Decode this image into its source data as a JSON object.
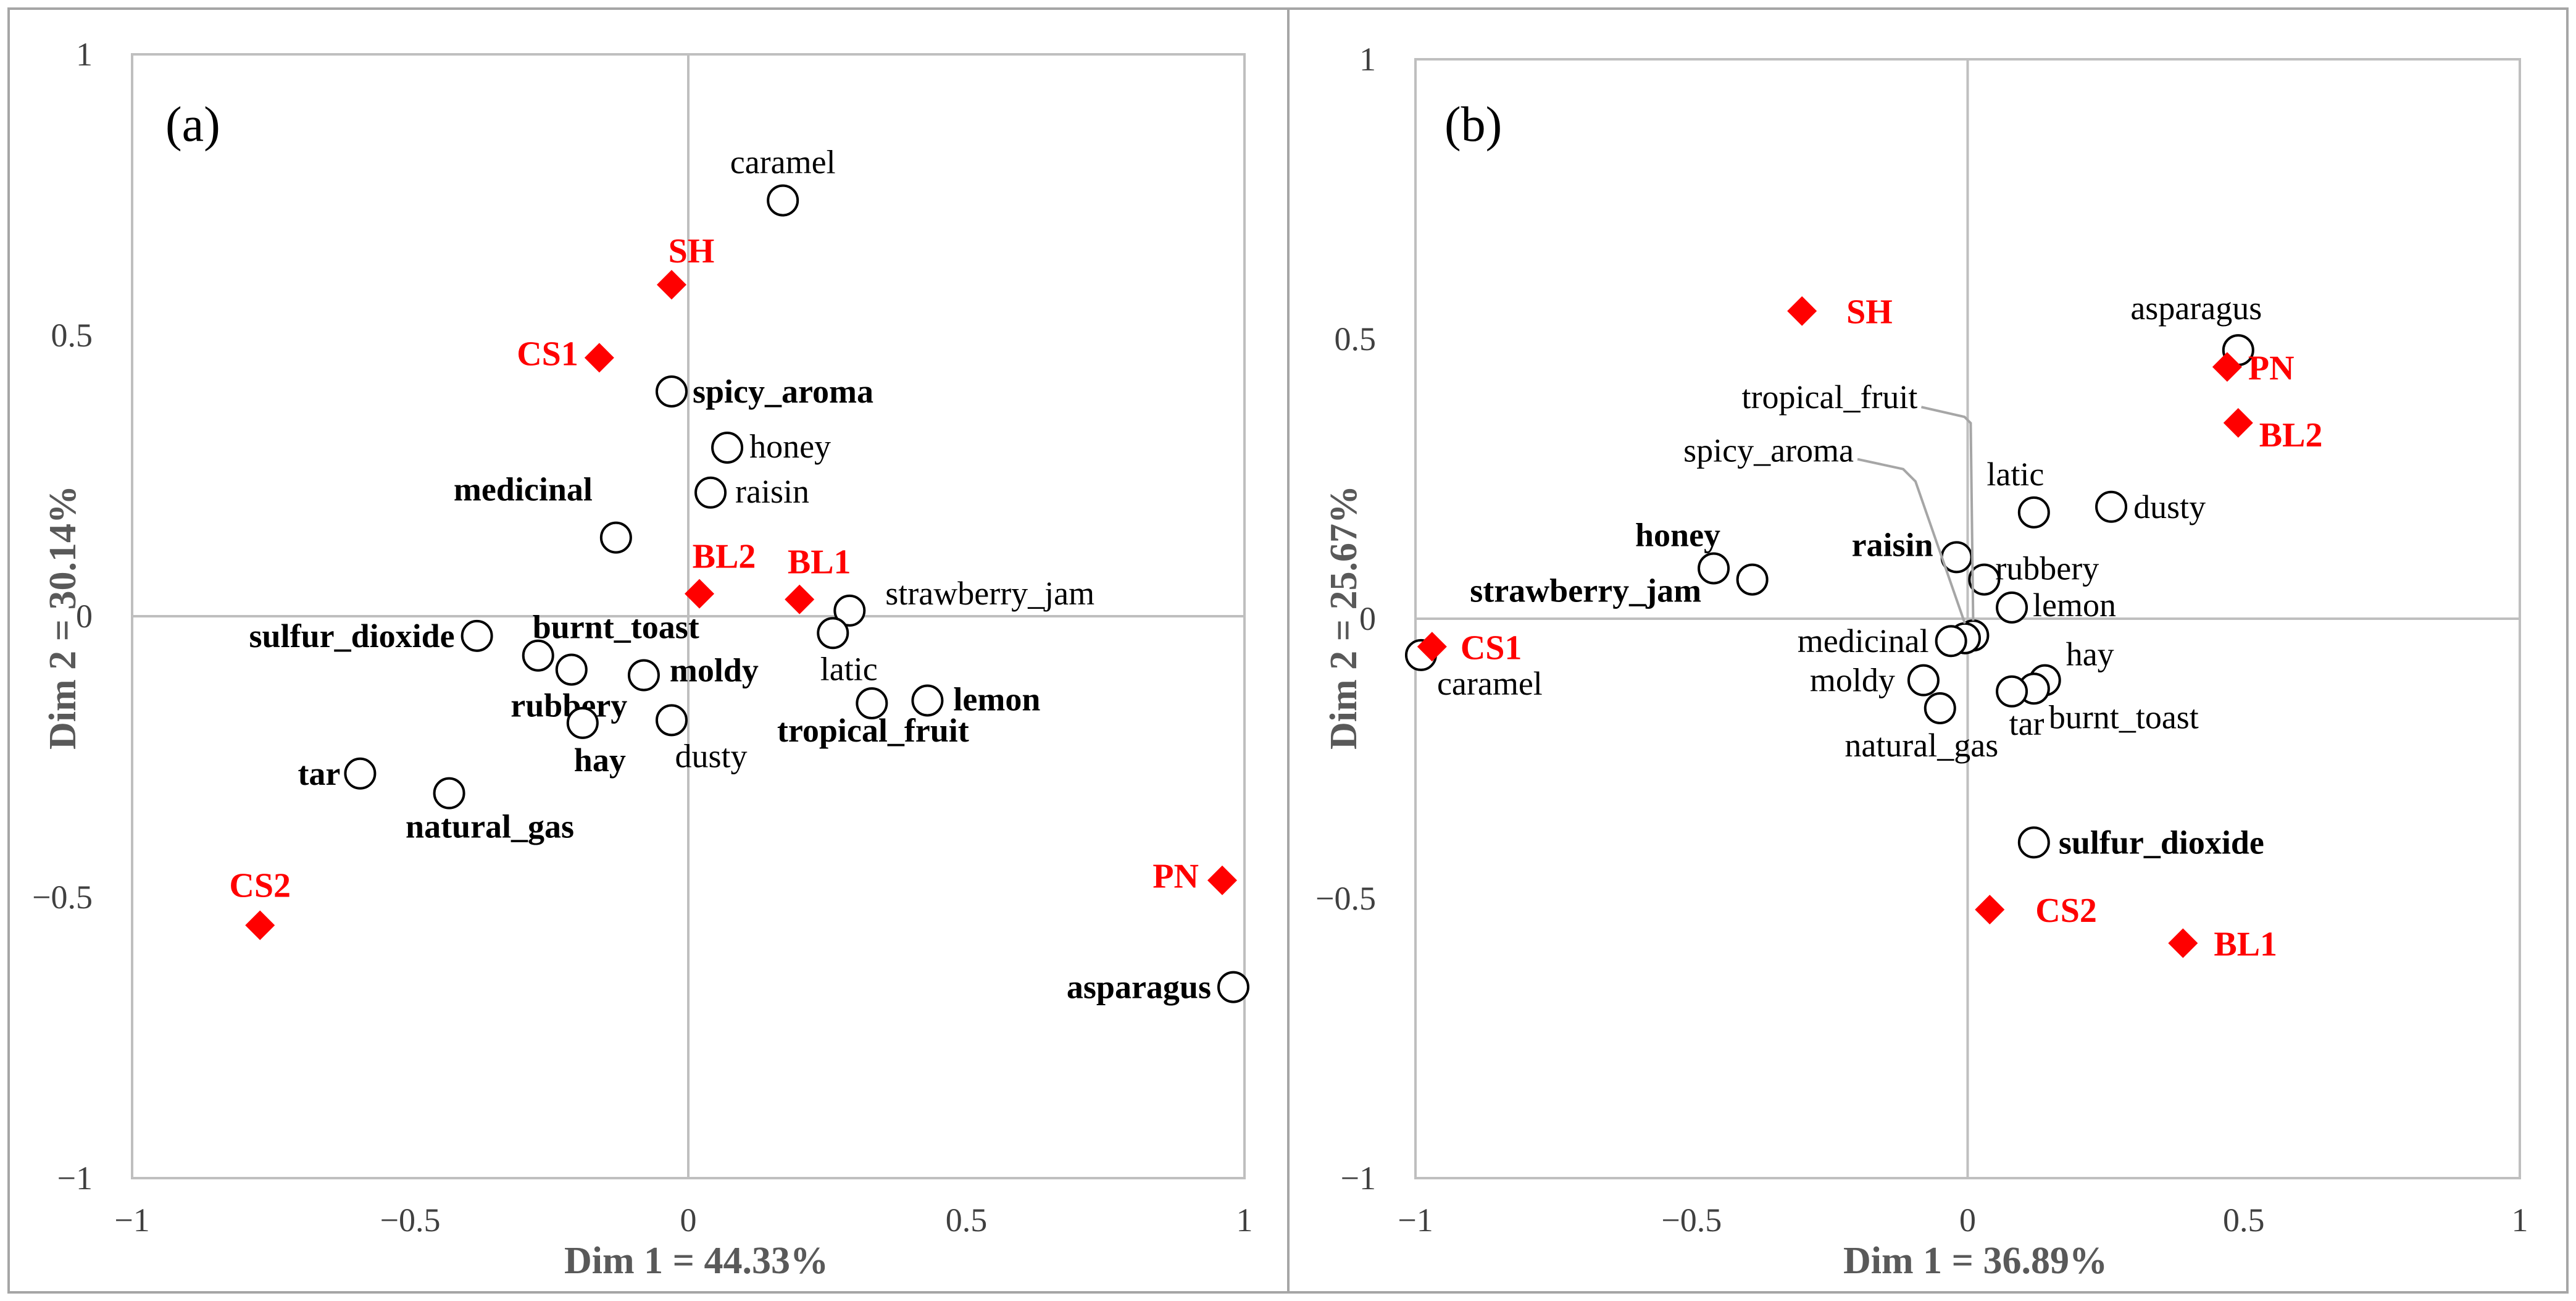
{
  "colors": {
    "sample": "#ff0000",
    "axis": "#bfbfbf",
    "frame": "#a6a6a6",
    "tick": "#404040",
    "axis_title": "#595959",
    "circle_stroke": "#000000"
  },
  "chart_data": [
    {
      "type": "scatter",
      "panel": "(a)",
      "xlabel": "Dim 1 = 44.33%",
      "ylabel": "Dim 2 = 30.14%",
      "xlim": [
        -1,
        1
      ],
      "ylim": [
        -1,
        1
      ],
      "xticks": [
        "−1",
        "−0.5",
        "0",
        "0.5",
        "1"
      ],
      "yticks": [
        "−1",
        "−0.5",
        "0",
        "0.5",
        "1"
      ],
      "grid": false,
      "series": [
        {
          "name": "samples",
          "marker": "diamond",
          "points": [
            {
              "label": "SH",
              "x": -0.03,
              "y": 0.59
            },
            {
              "label": "CS1",
              "x": -0.16,
              "y": 0.46
            },
            {
              "label": "BL2",
              "x": 0.02,
              "y": 0.04
            },
            {
              "label": "BL1",
              "x": 0.2,
              "y": 0.03
            },
            {
              "label": "PN",
              "x": 0.96,
              "y": -0.47
            },
            {
              "label": "CS2",
              "x": -0.77,
              "y": -0.55
            }
          ]
        },
        {
          "name": "attributes",
          "marker": "circle",
          "points": [
            {
              "label": "caramel",
              "x": 0.17,
              "y": 0.74,
              "bold": false
            },
            {
              "label": "spicy_aroma",
              "x": -0.03,
              "y": 0.4,
              "bold": true
            },
            {
              "label": "honey",
              "x": 0.07,
              "y": 0.3,
              "bold": false
            },
            {
              "label": "raisin",
              "x": 0.04,
              "y": 0.22,
              "bold": false
            },
            {
              "label": "medicinal",
              "x": -0.13,
              "y": 0.14,
              "bold": true
            },
            {
              "label": "strawberry_jam",
              "x": 0.29,
              "y": 0.01,
              "bold": false
            },
            {
              "label": "latic",
              "x": 0.26,
              "y": -0.03,
              "bold": false
            },
            {
              "label": "lemon",
              "x": 0.43,
              "y": -0.15,
              "bold": true
            },
            {
              "label": "tropical_fruit",
              "x": 0.33,
              "y": -0.155,
              "bold": true
            },
            {
              "label": "sulfur_dioxide",
              "x": -0.38,
              "y": -0.035,
              "bold": true
            },
            {
              "label": "burnt_toast",
              "x": -0.27,
              "y": -0.07,
              "bold": true
            },
            {
              "label": "rubbery",
              "x": -0.21,
              "y": -0.095,
              "bold": true
            },
            {
              "label": "moldy",
              "x": -0.08,
              "y": -0.105,
              "bold": true
            },
            {
              "label": "hay",
              "x": -0.19,
              "y": -0.19,
              "bold": true
            },
            {
              "label": "dusty",
              "x": -0.03,
              "y": -0.185,
              "bold": false
            },
            {
              "label": "tar",
              "x": -0.59,
              "y": -0.28,
              "bold": true
            },
            {
              "label": "natural_gas",
              "x": -0.43,
              "y": -0.315,
              "bold": true
            },
            {
              "label": "asparagus",
              "x": 0.98,
              "y": -0.66,
              "bold": true
            }
          ]
        }
      ]
    },
    {
      "type": "scatter",
      "panel": "(b)",
      "xlabel": "Dim 1 = 36.89%",
      "ylabel": "Dim 2 = 25.67%",
      "xlim": [
        -1,
        1
      ],
      "ylim": [
        -1,
        1
      ],
      "xticks": [
        "−1",
        "−0.5",
        "0",
        "0.5",
        "1"
      ],
      "yticks": [
        "−1",
        "−0.5",
        "0",
        "0.5",
        "1"
      ],
      "grid": false,
      "series": [
        {
          "name": "samples",
          "marker": "diamond",
          "points": [
            {
              "label": "SH",
              "x": -0.3,
              "y": 0.55
            },
            {
              "label": "PN",
              "x": 0.47,
              "y": 0.45
            },
            {
              "label": "BL2",
              "x": 0.49,
              "y": 0.35
            },
            {
              "label": "CS1",
              "x": -0.97,
              "y": -0.05
            },
            {
              "label": "CS2",
              "x": 0.04,
              "y": -0.52
            },
            {
              "label": "BL1",
              "x": 0.39,
              "y": -0.58
            }
          ]
        },
        {
          "name": "attributes",
          "marker": "circle",
          "points": [
            {
              "label": "asparagus",
              "x": 0.49,
              "y": 0.48,
              "bold": false
            },
            {
              "label": "dusty",
              "x": 0.26,
              "y": 0.2,
              "bold": false
            },
            {
              "label": "latic",
              "x": 0.12,
              "y": 0.19,
              "bold": false
            },
            {
              "label": "raisin",
              "x": -0.02,
              "y": 0.11,
              "bold": true
            },
            {
              "label": "rubbery",
              "x": 0.03,
              "y": 0.07,
              "bold": false
            },
            {
              "label": "lemon",
              "x": 0.08,
              "y": 0.02,
              "bold": false
            },
            {
              "label": "honey",
              "x": -0.46,
              "y": 0.09,
              "bold": true
            },
            {
              "label": "strawberry_jam",
              "x": -0.39,
              "y": 0.07,
              "bold": true
            },
            {
              "label": "tropical_fruit",
              "x": 0.01,
              "y": -0.03,
              "bold": false,
              "leader": true
            },
            {
              "label": "spicy_aroma",
              "x": -0.005,
              "y": -0.035,
              "bold": false,
              "leader": true
            },
            {
              "label": "medicinal",
              "x": -0.03,
              "y": -0.04,
              "bold": false
            },
            {
              "label": "moldy",
              "x": -0.08,
              "y": -0.11,
              "bold": false
            },
            {
              "label": "natural_gas",
              "x": -0.05,
              "y": -0.16,
              "bold": false
            },
            {
              "label": "hay",
              "x": 0.14,
              "y": -0.11,
              "bold": false
            },
            {
              "label": "burnt_toast",
              "x": 0.12,
              "y": -0.125,
              "bold": false
            },
            {
              "label": "tar",
              "x": 0.08,
              "y": -0.13,
              "bold": false
            },
            {
              "label": "caramel",
              "x": -0.99,
              "y": -0.065,
              "bold": false
            },
            {
              "label": "sulfur_dioxide",
              "x": 0.12,
              "y": -0.4,
              "bold": true
            }
          ]
        }
      ]
    }
  ]
}
